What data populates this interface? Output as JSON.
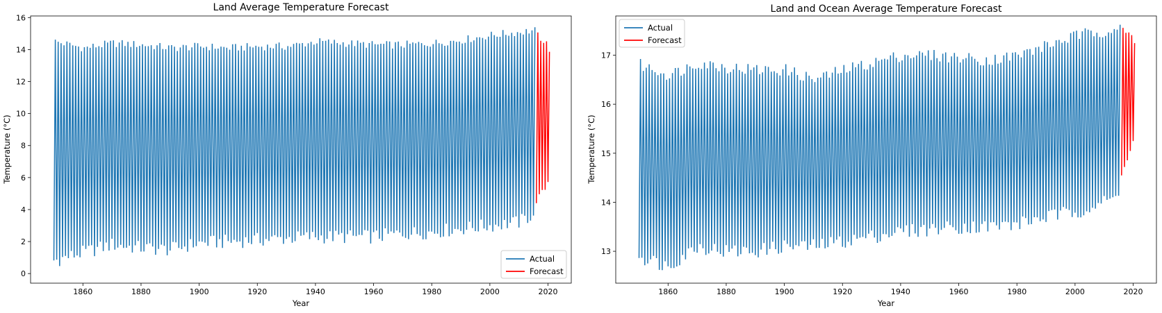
{
  "colors": {
    "actual": "#1f77b4",
    "forecast": "#ff0000"
  },
  "chart_data": [
    {
      "type": "line",
      "title": "Land Average Temperature Forecast",
      "xlabel": "Year",
      "ylabel": "Temperature (°C)",
      "xlim": [
        1842,
        2028
      ],
      "ylim": [
        -0.6,
        16.1
      ],
      "xticks": [
        1860,
        1880,
        1900,
        1920,
        1940,
        1960,
        1980,
        2000,
        2020
      ],
      "yticks": [
        0,
        2,
        4,
        6,
        8,
        10,
        12,
        14,
        16
      ],
      "legend_position": "lower-right",
      "series": [
        {
          "name": "Actual",
          "color": "#1f77b4",
          "annual_max": [
            [
              1850,
              14.5
            ],
            [
              1860,
              14.1
            ],
            [
              1870,
              14.4
            ],
            [
              1880,
              14.3
            ],
            [
              1890,
              14.1
            ],
            [
              1900,
              14.2
            ],
            [
              1910,
              14.1
            ],
            [
              1920,
              14.2
            ],
            [
              1930,
              14.2
            ],
            [
              1940,
              14.5
            ],
            [
              1950,
              14.4
            ],
            [
              1960,
              14.3
            ],
            [
              1970,
              14.3
            ],
            [
              1980,
              14.4
            ],
            [
              1990,
              14.6
            ],
            [
              2000,
              14.9
            ],
            [
              2010,
              15.1
            ],
            [
              2015,
              15.2
            ]
          ],
          "annual_min": [
            [
              1850,
              0.8
            ],
            [
              1860,
              1.3
            ],
            [
              1870,
              1.8
            ],
            [
              1880,
              1.6
            ],
            [
              1890,
              1.5
            ],
            [
              1900,
              1.9
            ],
            [
              1910,
              2.0
            ],
            [
              1920,
              2.1
            ],
            [
              1930,
              2.2
            ],
            [
              1940,
              2.3
            ],
            [
              1950,
              2.3
            ],
            [
              1960,
              2.3
            ],
            [
              1970,
              2.5
            ],
            [
              1980,
              2.6
            ],
            [
              1990,
              2.8
            ],
            [
              2000,
              3.0
            ],
            [
              2010,
              3.2
            ],
            [
              2015,
              3.7
            ]
          ]
        },
        {
          "name": "Forecast",
          "color": "#ff0000",
          "annual_max": [
            [
              2016,
              14.9
            ],
            [
              2017,
              14.7
            ],
            [
              2018,
              14.5
            ],
            [
              2019,
              14.3
            ],
            [
              2020,
              14.0
            ]
          ],
          "annual_min": [
            [
              2016,
              4.4
            ],
            [
              2017,
              4.6
            ],
            [
              2018,
              4.9
            ],
            [
              2019,
              5.2
            ],
            [
              2020,
              5.5
            ]
          ]
        }
      ]
    },
    {
      "type": "line",
      "title": "Land and Ocean Average Temperature Forecast",
      "xlabel": "Year",
      "ylabel": "Temperature (°C)",
      "xlim": [
        1842,
        2028
      ],
      "ylim": [
        12.35,
        17.8
      ],
      "xticks": [
        1860,
        1880,
        1900,
        1920,
        1940,
        1960,
        1980,
        2000,
        2020
      ],
      "yticks": [
        13,
        14,
        15,
        16,
        17
      ],
      "legend_position": "upper-left",
      "series": [
        {
          "name": "Actual",
          "color": "#1f77b4",
          "annual_max": [
            [
              1850,
              16.8
            ],
            [
              1860,
              16.6
            ],
            [
              1870,
              16.85
            ],
            [
              1880,
              16.75
            ],
            [
              1890,
              16.7
            ],
            [
              1900,
              16.7
            ],
            [
              1910,
              16.5
            ],
            [
              1920,
              16.7
            ],
            [
              1930,
              16.85
            ],
            [
              1940,
              17.0
            ],
            [
              1950,
              17.0
            ],
            [
              1960,
              16.95
            ],
            [
              1970,
              16.9
            ],
            [
              1980,
              17.0
            ],
            [
              1990,
              17.2
            ],
            [
              2000,
              17.4
            ],
            [
              2010,
              17.5
            ],
            [
              2015,
              17.6
            ]
          ],
          "annual_min": [
            [
              1850,
              12.9
            ],
            [
              1860,
              12.7
            ],
            [
              1870,
              13.1
            ],
            [
              1880,
              13.0
            ],
            [
              1890,
              13.0
            ],
            [
              1900,
              13.1
            ],
            [
              1910,
              13.1
            ],
            [
              1920,
              13.2
            ],
            [
              1930,
              13.3
            ],
            [
              1940,
              13.4
            ],
            [
              1950,
              13.45
            ],
            [
              1960,
              13.5
            ],
            [
              1970,
              13.5
            ],
            [
              1980,
              13.55
            ],
            [
              1990,
              13.7
            ],
            [
              2000,
              13.8
            ],
            [
              2010,
              14.0
            ],
            [
              2015,
              14.1
            ]
          ]
        },
        {
          "name": "Forecast",
          "color": "#ff0000",
          "annual_max": [
            [
              2016,
              17.6
            ],
            [
              2017,
              17.5
            ],
            [
              2018,
              17.4
            ],
            [
              2019,
              17.3
            ],
            [
              2020,
              17.15
            ]
          ],
          "annual_min": [
            [
              2016,
              14.5
            ],
            [
              2017,
              14.6
            ],
            [
              2018,
              14.8
            ],
            [
              2019,
              15.0
            ],
            [
              2020,
              15.2
            ]
          ]
        }
      ]
    }
  ]
}
